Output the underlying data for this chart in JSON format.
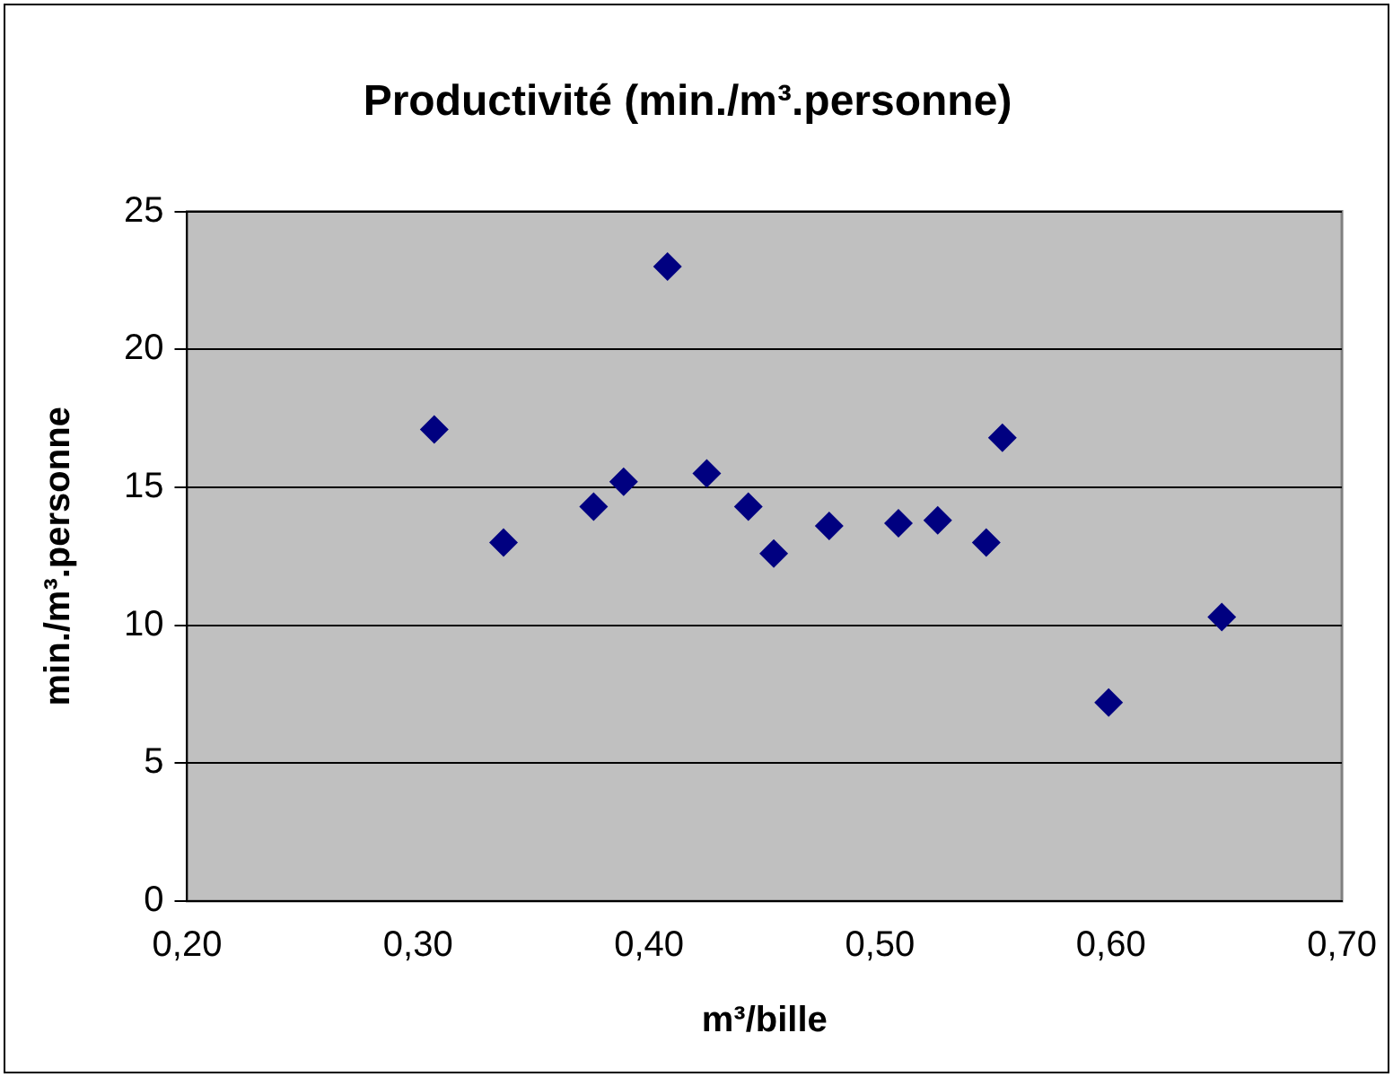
{
  "chart_data": {
    "type": "scatter",
    "title": "Productivité (min./m³.personne)",
    "xlabel": "m³/bille",
    "ylabel": "min./m³.personne",
    "x": [
      0.307,
      0.337,
      0.376,
      0.389,
      0.408,
      0.425,
      0.443,
      0.454,
      0.478,
      0.508,
      0.525,
      0.546,
      0.553,
      0.599,
      0.648
    ],
    "series": [
      {
        "color": "#000080",
        "values": [
          17.1,
          13.0,
          14.3,
          15.2,
          23.0,
          15.5,
          14.3,
          12.6,
          13.6,
          13.7,
          13.8,
          13.0,
          16.8,
          7.2,
          10.3
        ]
      }
    ],
    "xlim": [
      0.2,
      0.7
    ],
    "xticks": [
      {
        "value": 0.2,
        "label": "0,20"
      },
      {
        "value": 0.3,
        "label": "0,30"
      },
      {
        "value": 0.4,
        "label": "0,40"
      },
      {
        "value": 0.5,
        "label": "0,50"
      },
      {
        "value": 0.6,
        "label": "0,60"
      },
      {
        "value": 0.7,
        "label": "0,70"
      }
    ],
    "ylim": [
      0,
      25
    ],
    "yticks": [
      0,
      5,
      10,
      15,
      20,
      25
    ],
    "grid": "y",
    "marker": "diamond",
    "legend": false
  }
}
